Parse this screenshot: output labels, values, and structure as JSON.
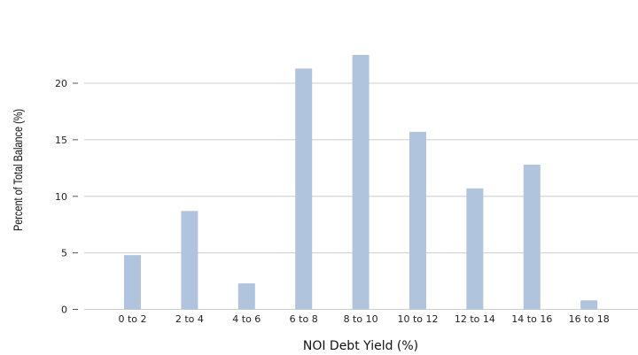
{
  "chart_data": {
    "type": "bar",
    "categories": [
      "0 to 2",
      "2 to 4",
      "4 to 6",
      "6 to 8",
      "8 to 10",
      "10 to 12",
      "12 to 14",
      "14 to 16",
      "16 to 18"
    ],
    "values": [
      4.8,
      8.7,
      2.3,
      21.3,
      22.5,
      15.7,
      10.7,
      12.8,
      0.8
    ],
    "xlabel": "NOI Debt Yield (%)",
    "ylabel": "Percent of Total Balance (%)",
    "ylim": [
      0,
      25
    ],
    "yticks": [
      0,
      5,
      10,
      15,
      20
    ],
    "grid": true,
    "bar_color": "#b0c4de",
    "grid_color": "#cccccc"
  }
}
